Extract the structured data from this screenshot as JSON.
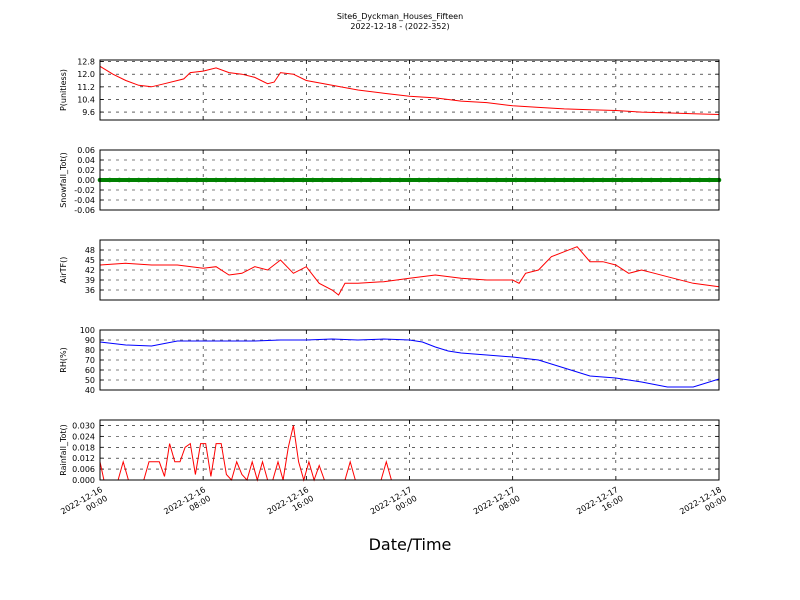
{
  "title_line1": "Site6_Dyckman_Houses_Fifteen",
  "title_line2": "2022-12-18 - (2022-352)",
  "xlabel": "Date/Time",
  "x_ticks": [
    "2022-12-16\n00:00",
    "2022-12-16\n08:00",
    "2022-12-16\n16:00",
    "2022-12-17\n00:00",
    "2022-12-17\n08:00",
    "2022-12-17\n16:00",
    "2022-12-18\n00:00"
  ],
  "chart_data": [
    {
      "type": "line",
      "ylabel": "P(unitless)",
      "color": "#ff0000",
      "ylim": [
        9.1,
        12.9
      ],
      "y_ticks": [
        "9.6",
        "10.4",
        "11.2",
        "12.0",
        "12.8"
      ],
      "x_hours": [
        0,
        1,
        2,
        3,
        4,
        5,
        6,
        6.5,
        7,
        8,
        8.5,
        9,
        10,
        11,
        12,
        13,
        13.5,
        14,
        15,
        16,
        18,
        20,
        22,
        24,
        26,
        28,
        30,
        32,
        34,
        36,
        38,
        40,
        42,
        44,
        46,
        48
      ],
      "values": [
        12.5,
        12.0,
        11.6,
        11.3,
        11.2,
        11.4,
        11.6,
        11.7,
        12.1,
        12.2,
        12.3,
        12.4,
        12.1,
        12.0,
        11.8,
        11.4,
        11.5,
        12.1,
        12.0,
        11.6,
        11.3,
        11.0,
        10.8,
        10.6,
        10.5,
        10.3,
        10.2,
        10.0,
        9.9,
        9.8,
        9.75,
        9.7,
        9.6,
        9.55,
        9.5,
        9.45
      ]
    },
    {
      "type": "scatter",
      "ylabel": "Snowfall_Tot()",
      "color": "#008000",
      "ylim": [
        -0.06,
        0.06
      ],
      "y_ticks": [
        "-0.06",
        "-0.04",
        "-0.02",
        "0.00",
        "0.02",
        "0.04",
        "0.06"
      ],
      "x_range_hours": [
        0,
        48
      ],
      "values": [
        0
      ]
    },
    {
      "type": "line",
      "ylabel": "AirTF()",
      "color": "#ff0000",
      "ylim": [
        33,
        51
      ],
      "y_ticks": [
        "36",
        "39",
        "42",
        "45",
        "48"
      ],
      "x_hours": [
        0,
        2,
        4,
        6,
        8,
        9,
        10,
        11,
        12,
        13,
        14,
        15,
        16,
        17,
        18,
        18.5,
        19,
        20,
        22,
        24,
        26,
        28,
        30,
        32,
        32.5,
        33,
        34,
        35,
        36,
        37,
        38,
        39,
        40,
        41,
        42,
        43,
        44,
        46,
        48
      ],
      "values": [
        43.5,
        44,
        43.5,
        43.5,
        42.5,
        43,
        40.5,
        41,
        43,
        42,
        45,
        41,
        43,
        38,
        36,
        34.5,
        38,
        38,
        38.5,
        39.5,
        40.5,
        39.5,
        39,
        39,
        38,
        41,
        42,
        46,
        47.5,
        49,
        44.5,
        44.5,
        43.5,
        41,
        42,
        41,
        40,
        38,
        37
      ]
    },
    {
      "type": "line",
      "ylabel": "RH(%)",
      "color": "#0000ff",
      "ylim": [
        40,
        100
      ],
      "y_ticks": [
        "40",
        "50",
        "60",
        "70",
        "80",
        "90",
        "100"
      ],
      "x_hours": [
        0,
        2,
        4,
        6,
        8,
        10,
        12,
        14,
        16,
        18,
        20,
        22,
        24,
        25,
        26,
        27,
        28,
        30,
        32,
        34,
        36,
        38,
        40,
        42,
        44,
        46,
        48
      ],
      "values": [
        88,
        85,
        84,
        89,
        89,
        89,
        89,
        90,
        90,
        91,
        90,
        91,
        90,
        88,
        83,
        79,
        77,
        75,
        73,
        70,
        62,
        54,
        52,
        48,
        43,
        43,
        51
      ]
    },
    {
      "type": "line",
      "ylabel": "Rainfall_Tot()",
      "color": "#ff0000",
      "ylim": [
        0.0,
        0.033
      ],
      "y_ticks": [
        "0.000",
        "0.006",
        "0.012",
        "0.018",
        "0.024",
        "0.030"
      ],
      "x_hours": [
        0,
        0.3,
        0.6,
        1,
        1.4,
        1.8,
        2.2,
        2.6,
        3,
        3.4,
        3.8,
        4.2,
        4.6,
        5,
        5.4,
        5.8,
        6.2,
        6.6,
        7,
        7.4,
        7.8,
        8.2,
        8.6,
        9,
        9.4,
        9.8,
        10.2,
        10.6,
        11,
        11.4,
        11.8,
        12.2,
        12.6,
        13,
        13.4,
        13.8,
        14.2,
        14.6,
        15,
        15.4,
        15.8,
        16.2,
        16.6,
        17,
        17.4,
        17.8,
        18.2,
        18.6,
        19,
        19.4,
        19.8,
        20.2,
        20.6,
        21,
        21.4,
        21.8,
        22.2,
        22.6,
        23,
        23.4,
        23.8,
        24.2,
        24.6,
        25,
        30,
        36,
        42,
        48
      ],
      "values": [
        0.01,
        0,
        0,
        0,
        0,
        0.01,
        0,
        0,
        0,
        0,
        0.01,
        0.01,
        0.01,
        0.002,
        0.02,
        0.01,
        0.01,
        0.018,
        0.02,
        0.003,
        0.02,
        0.02,
        0.002,
        0.02,
        0.02,
        0.003,
        0,
        0.01,
        0.003,
        0,
        0.01,
        0,
        0.01,
        0,
        0,
        0.01,
        0,
        0.018,
        0.03,
        0.01,
        0,
        0.01,
        0,
        0.008,
        0,
        0,
        0,
        0,
        0,
        0.01,
        0,
        0,
        0,
        0,
        0,
        0,
        0.01,
        0,
        0,
        0,
        0,
        0,
        0,
        0,
        0,
        0,
        0,
        0
      ]
    }
  ]
}
